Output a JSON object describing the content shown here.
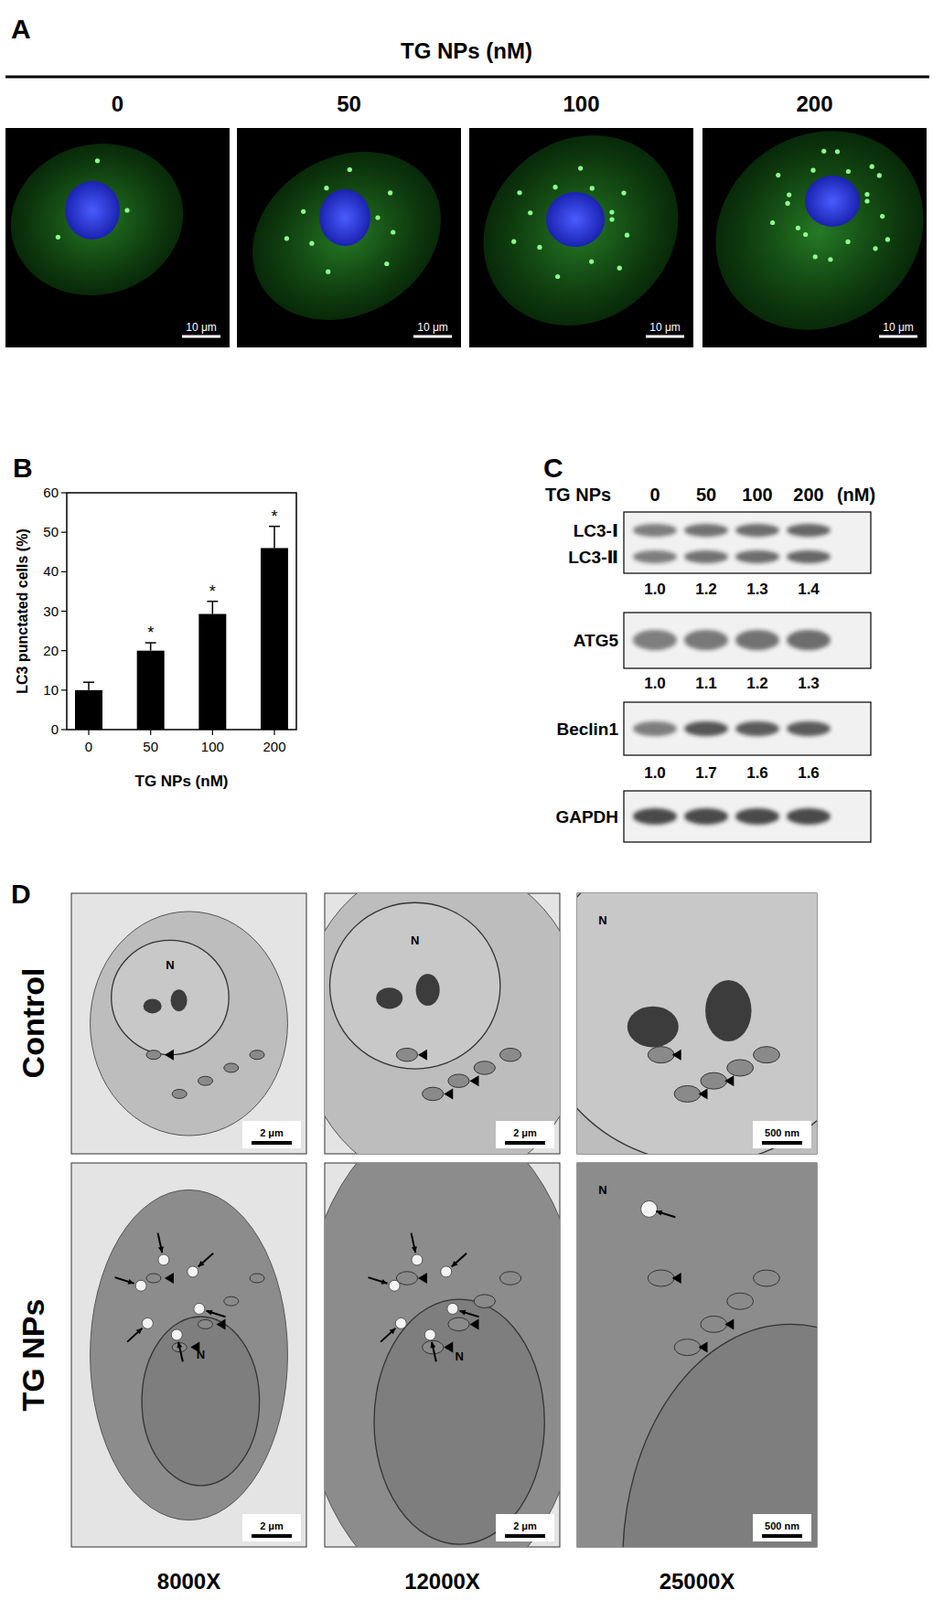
{
  "panel_labels": [
    "A",
    "B",
    "C",
    "D"
  ],
  "panel_a": {
    "title": "TG NPs (nM)",
    "columns": [
      "0",
      "50",
      "100",
      "200"
    ],
    "scale_bar": "10 μm"
  },
  "chart_data": {
    "type": "bar",
    "categories": [
      "0",
      "50",
      "100",
      "200"
    ],
    "values": [
      10,
      20,
      29.3,
      46
    ],
    "errors": [
      2,
      2,
      3.2,
      5.5
    ],
    "significance": [
      null,
      "*",
      "*",
      "*"
    ],
    "color": "#000000",
    "x_label": "TG NPs (nM)",
    "y_label": "LC3 punctated cells (%)",
    "ylim": [
      0,
      60
    ],
    "yticks": [
      0,
      10,
      20,
      30,
      40,
      50,
      60
    ],
    "grid": false
  },
  "panel_c": {
    "treatment": "TG NPs",
    "lanes": [
      "0",
      "50",
      "100",
      "200"
    ],
    "unit": "(nM)",
    "blots": [
      {
        "labels": [
          "LC3-Ⅰ",
          "LC3-Ⅱ"
        ],
        "quantification": [
          "1.0",
          "1.2",
          "1.3",
          "1.4"
        ]
      },
      {
        "labels": [
          "ATG5"
        ],
        "quantification": [
          "1.0",
          "1.1",
          "1.2",
          "1.3"
        ]
      },
      {
        "labels": [
          "Beclin1"
        ],
        "quantification": [
          "1.0",
          "1.7",
          "1.6",
          "1.6"
        ]
      },
      {
        "labels": [
          "GAPDH"
        ]
      }
    ]
  },
  "panel_d": {
    "rows": [
      "Control",
      "TG NPs"
    ],
    "columns": [
      "8000X",
      "12000X",
      "25000X"
    ],
    "scale_bars": [
      "2 μm",
      "2 μm",
      "500 nm"
    ],
    "nucleus_label": "N"
  }
}
